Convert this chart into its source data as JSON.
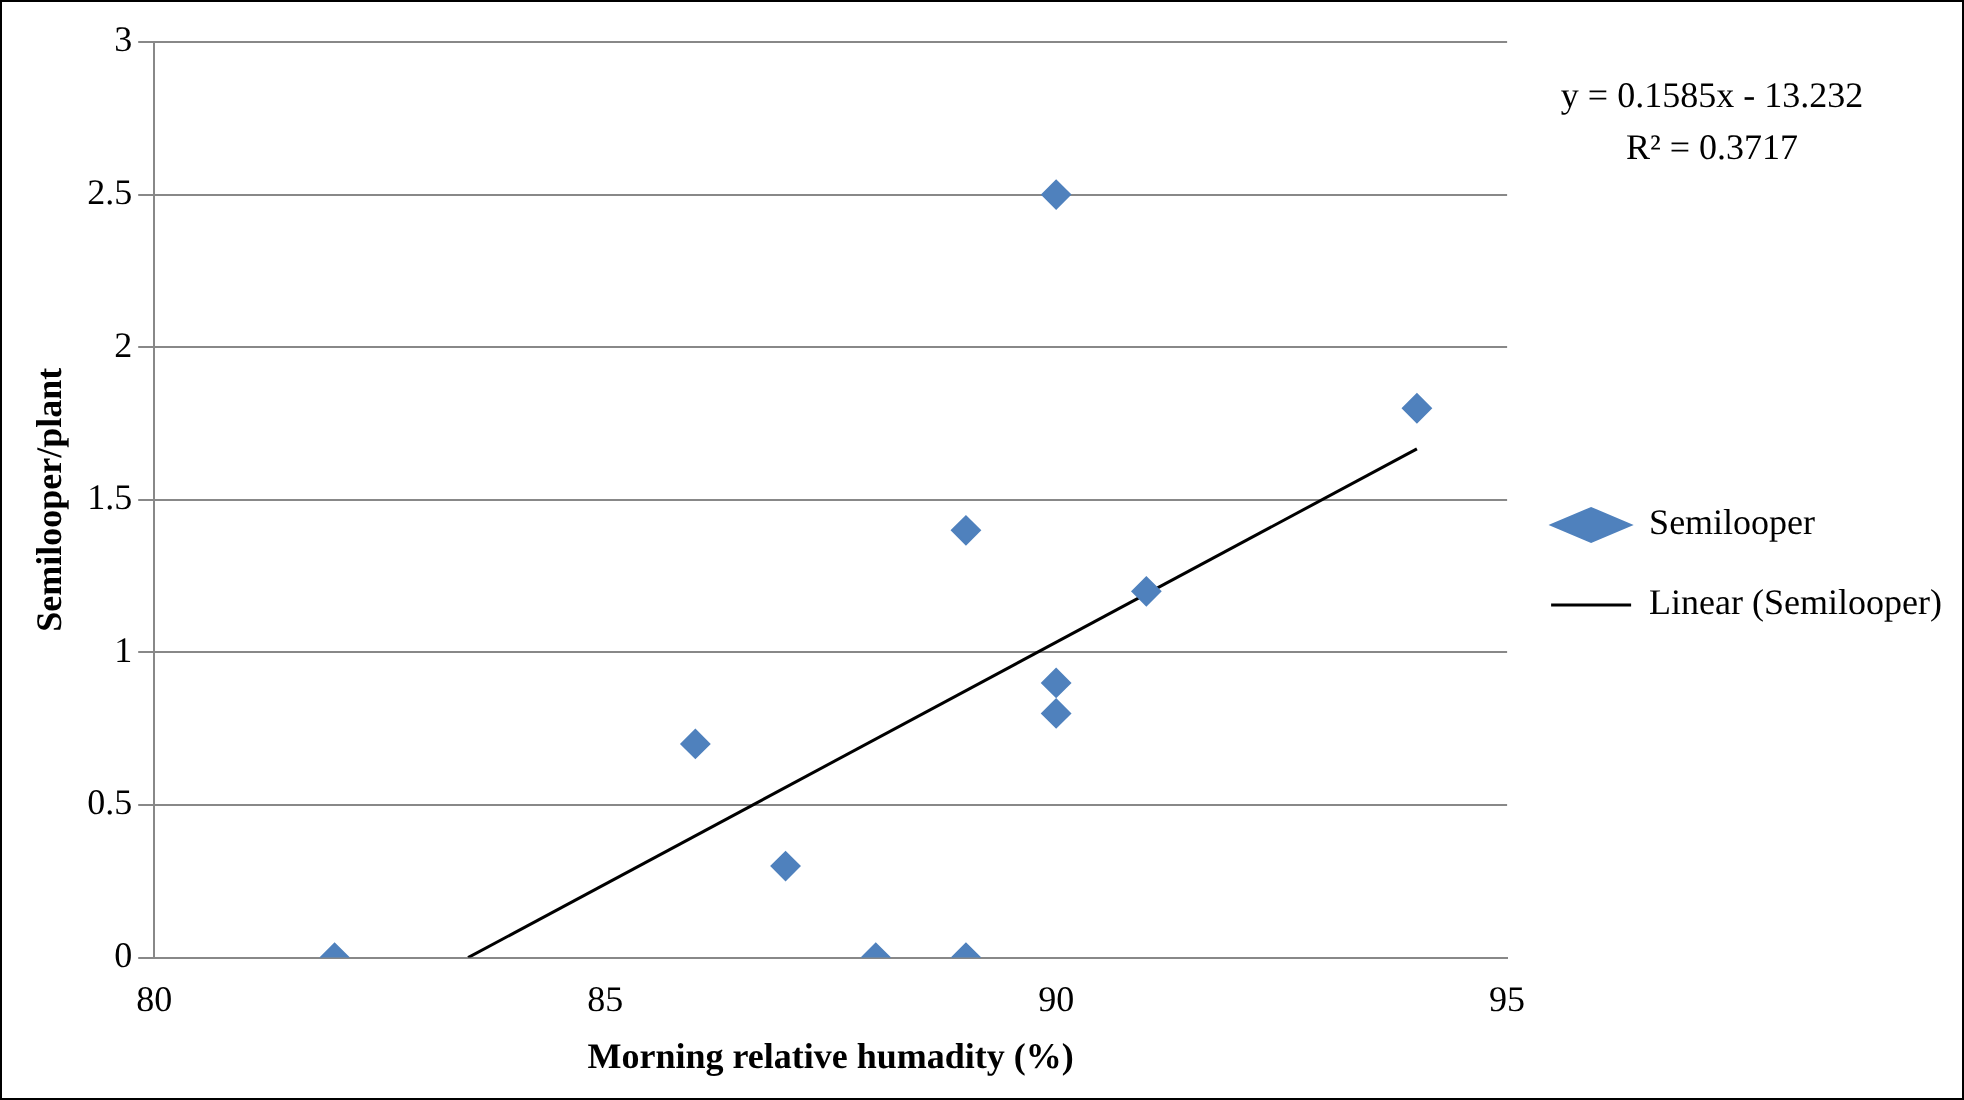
{
  "chart_data": {
    "type": "scatter",
    "xlabel": "Morning relative humadity (%)",
    "ylabel": "Semilooper/plant",
    "xlim": [
      80,
      95
    ],
    "xticks": [
      80,
      85,
      90,
      95
    ],
    "ylim": [
      0,
      3
    ],
    "yticks": [
      0,
      0.5,
      1,
      1.5,
      2,
      2.5,
      3
    ],
    "grid": "y",
    "legend": "right",
    "annotations": [
      "y = 0.1585x - 13.232",
      "R² = 0.3717"
    ],
    "series": [
      {
        "name": "Semilooper",
        "marker": "diamond",
        "color": "#4f81bd",
        "x": [
          82,
          86,
          87,
          88,
          89,
          89,
          90,
          90,
          90,
          91,
          94
        ],
        "values": [
          0,
          0.7,
          0.3,
          0,
          1.4,
          0,
          2.5,
          0.9,
          0.8,
          1.2,
          1.8
        ]
      },
      {
        "name": "Linear (Semilooper)",
        "type": "line",
        "marker": "none",
        "color": "#000000",
        "x": [
          83.48,
          94
        ],
        "values": [
          0,
          1.667
        ]
      }
    ]
  }
}
